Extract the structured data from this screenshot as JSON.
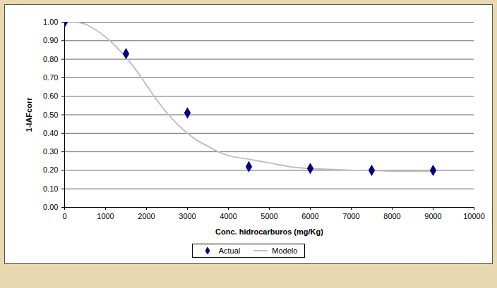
{
  "chart_data": {
    "type": "line",
    "x_label": "Conc. hidrocarburos (mg/Kg)",
    "y_label": "1-IAFcorr",
    "xlim": [
      0,
      10000
    ],
    "xticks": [
      0,
      1000,
      2000,
      3000,
      4000,
      5000,
      6000,
      7000,
      8000,
      9000,
      10000
    ],
    "ylim": [
      0,
      1
    ],
    "yticks": [
      {
        "value": 0,
        "label": "0.00"
      },
      {
        "value": 0.1,
        "label": "0.10"
      },
      {
        "value": 0.2,
        "label": "0.20"
      },
      {
        "value": 0.3,
        "label": "0.30"
      },
      {
        "value": 0.4,
        "label": "0.40"
      },
      {
        "value": 0.5,
        "label": "0.50"
      },
      {
        "value": 0.6,
        "label": "0.60"
      },
      {
        "value": 0.7,
        "label": "0.70"
      },
      {
        "value": 0.8,
        "label": "0.80"
      },
      {
        "value": 0.9,
        "label": "0.90"
      },
      {
        "value": 1,
        "label": "1.00"
      }
    ],
    "grid": "y",
    "legend": "bottom",
    "series": [
      {
        "name": "Actual",
        "type": "scatter",
        "marker": "diamond",
        "color": "#000080",
        "x": [
          0,
          1500,
          3000,
          4500,
          6000,
          7500,
          9000
        ],
        "values": [
          1.0,
          0.83,
          0.51,
          0.22,
          0.21,
          0.2,
          0.2
        ]
      },
      {
        "name": "Modelo",
        "type": "line",
        "line_style": "solid",
        "color": "#c0c0c0",
        "x": [
          0,
          250,
          500,
          750,
          1000,
          1250,
          1500,
          1750,
          2000,
          2250,
          2500,
          2750,
          3000,
          3250,
          3500,
          3750,
          4000,
          4500,
          5000,
          5500,
          6000,
          6500,
          7000,
          7500,
          8000,
          8500,
          9000
        ],
        "values": [
          1.0,
          1.0,
          0.99,
          0.96,
          0.92,
          0.87,
          0.81,
          0.74,
          0.66,
          0.58,
          0.51,
          0.45,
          0.4,
          0.36,
          0.33,
          0.3,
          0.28,
          0.26,
          0.24,
          0.22,
          0.21,
          0.205,
          0.2,
          0.2,
          0.195,
          0.195,
          0.195
        ]
      }
    ]
  }
}
